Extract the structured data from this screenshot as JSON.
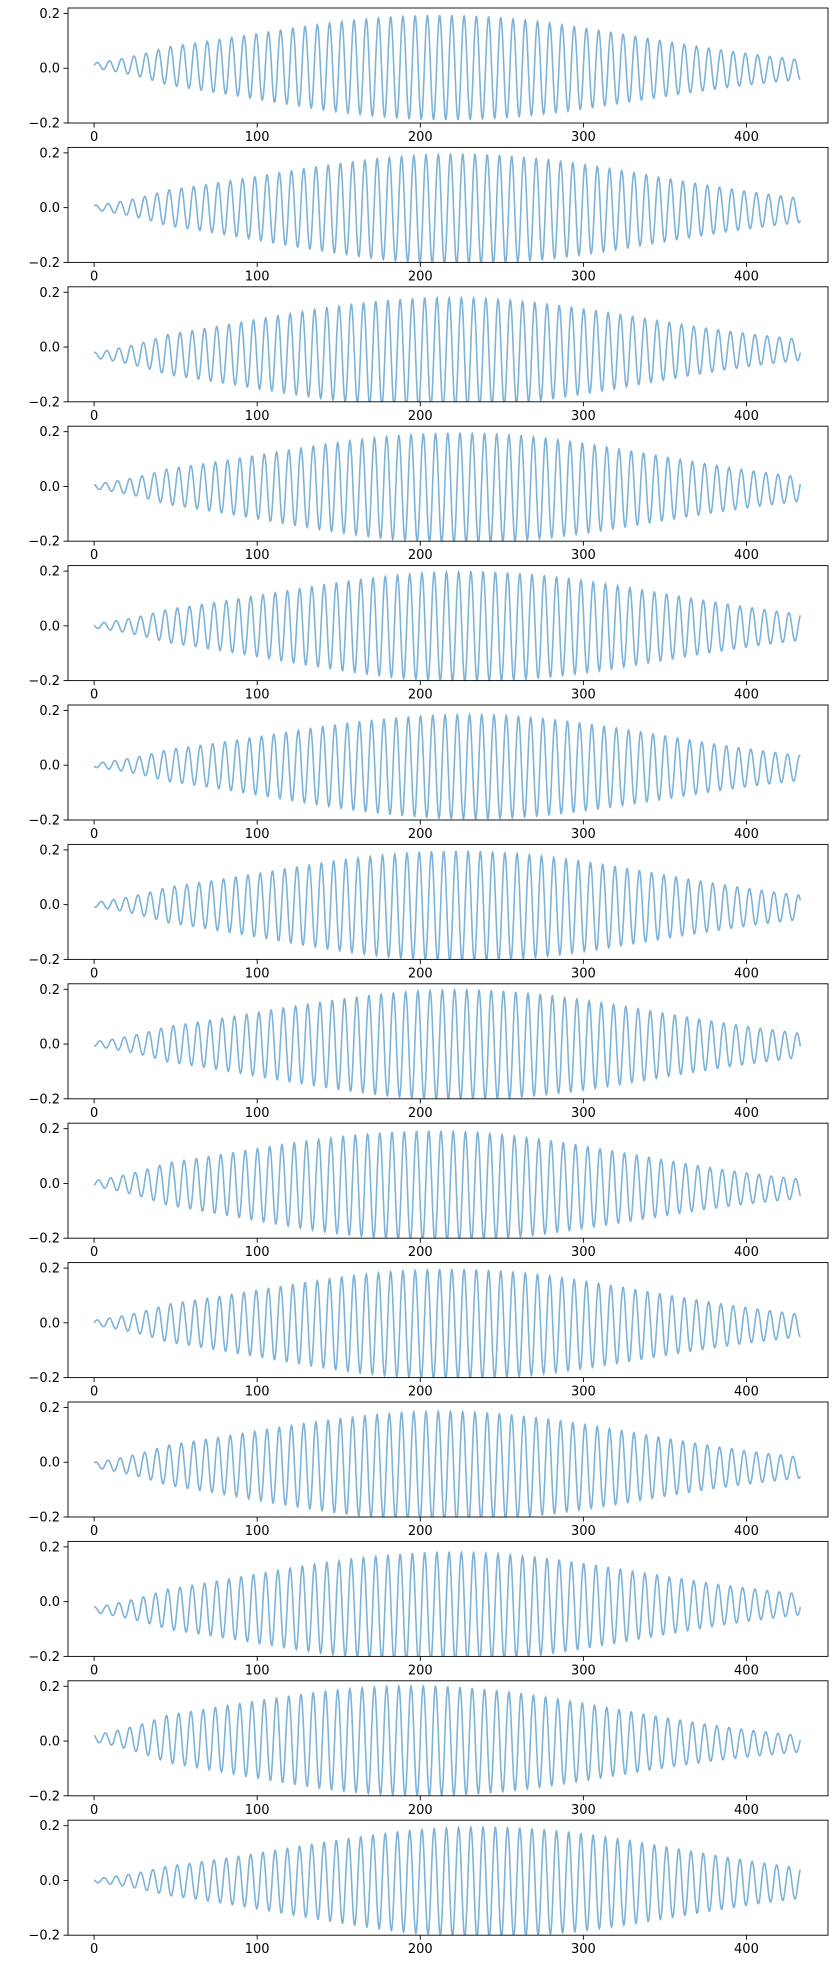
{
  "chart_data": {
    "type": "line",
    "layout": "vertical stack of 14 subplots sharing the same axes",
    "line_color": "#7db3d8",
    "grid": false,
    "xlim": [
      -16,
      450
    ],
    "ylim": [
      -0.2,
      0.22
    ],
    "x_ticks": [
      0,
      100,
      200,
      300,
      400
    ],
    "x_tick_labels": [
      "0",
      "100",
      "200",
      "300",
      "400"
    ],
    "y_ticks": [
      -0.2,
      0.0,
      0.2
    ],
    "y_tick_labels": [
      "−0.2",
      "0.0",
      "0.2"
    ],
    "sample_count": 434,
    "x_range": [
      0,
      433
    ],
    "subplots": [
      {
        "cycle_period": 7.5,
        "envelope_peak": 0.19,
        "peak_at": 215,
        "start_value": 0.01,
        "end_value": -0.005
      },
      {
        "cycle_period": 7.5,
        "envelope_peak": 0.2,
        "peak_at": 225,
        "start_value": 0.0,
        "end_value": -0.01
      },
      {
        "cycle_period": 7.5,
        "envelope_peak": 0.2,
        "peak_at": 215,
        "start_value": -0.03,
        "end_value": -0.01
      },
      {
        "cycle_period": 7.5,
        "envelope_peak": 0.2,
        "peak_at": 225,
        "start_value": 0.0,
        "end_value": -0.01
      },
      {
        "cycle_period": 7.5,
        "envelope_peak": 0.2,
        "peak_at": 230,
        "start_value": 0.0,
        "end_value": -0.005
      },
      {
        "cycle_period": 7.5,
        "envelope_peak": 0.19,
        "peak_at": 230,
        "start_value": 0.0,
        "end_value": -0.01
      },
      {
        "cycle_period": 7.5,
        "envelope_peak": 0.2,
        "peak_at": 225,
        "start_value": 0.0,
        "end_value": -0.01
      },
      {
        "cycle_period": 7.5,
        "envelope_peak": 0.2,
        "peak_at": 225,
        "start_value": 0.0,
        "end_value": -0.005
      },
      {
        "cycle_period": 7.5,
        "envelope_peak": 0.2,
        "peak_at": 210,
        "start_value": 0.0,
        "end_value": -0.02
      },
      {
        "cycle_period": 7.5,
        "envelope_peak": 0.2,
        "peak_at": 220,
        "start_value": 0.0,
        "end_value": -0.01
      },
      {
        "cycle_period": 7.5,
        "envelope_peak": 0.2,
        "peak_at": 215,
        "start_value": -0.01,
        "end_value": -0.02
      },
      {
        "cycle_period": 7.5,
        "envelope_peak": 0.2,
        "peak_at": 215,
        "start_value": -0.03,
        "end_value": -0.01
      },
      {
        "cycle_period": 7.5,
        "envelope_peak": 0.2,
        "peak_at": 200,
        "start_value": 0.01,
        "end_value": -0.01
      },
      {
        "cycle_period": 7.5,
        "envelope_peak": 0.2,
        "peak_at": 240,
        "start_value": 0.0,
        "end_value": -0.01
      }
    ]
  }
}
